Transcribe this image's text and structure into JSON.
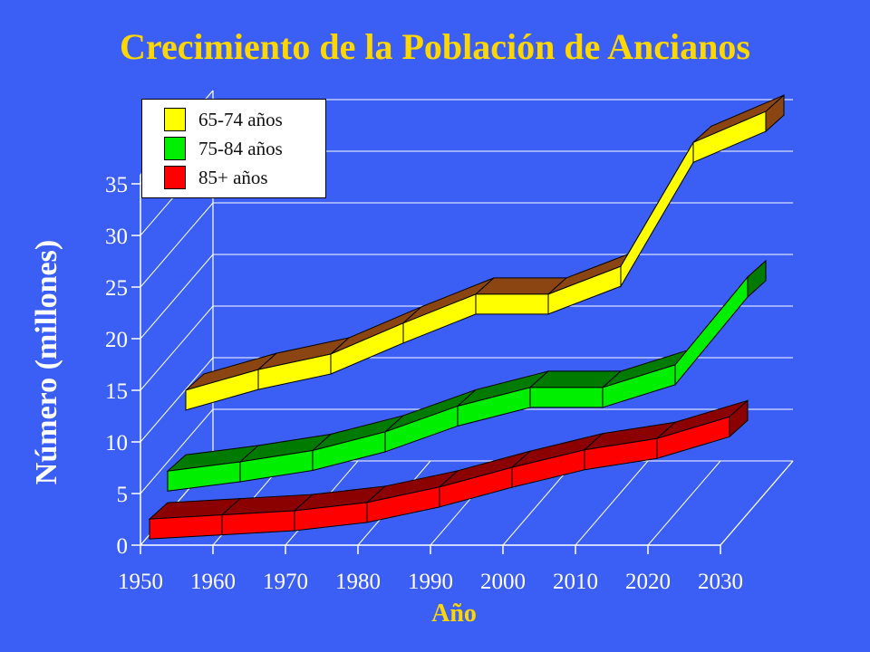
{
  "title": "Crecimiento de la Población de Ancianos",
  "chart_data": {
    "type": "line",
    "title": "Crecimiento de la Población de Ancianos",
    "xlabel": "Año",
    "ylabel": "Número (millones)",
    "x": [
      1950,
      1960,
      1970,
      1980,
      1990,
      2000,
      2010,
      2020,
      2030
    ],
    "x_ticks": [
      "1950",
      "1960",
      "1970",
      "1980",
      "1990",
      "2000",
      "2010",
      "2020",
      "2030"
    ],
    "y_ticks": [
      "0",
      "5",
      "10",
      "15",
      "20",
      "25",
      "30",
      "35"
    ],
    "ylim": [
      0,
      35
    ],
    "grid": true,
    "legend": "top-left",
    "series": [
      {
        "name": "65-74 años",
        "color": "#ffff00",
        "top_color": "#8b4513",
        "values": [
          9,
          11,
          12.5,
          15.5,
          18.3,
          18.3,
          21,
          33,
          36
        ]
      },
      {
        "name": "75-84 años",
        "color": "#00ee00",
        "top_color": "#007a00",
        "values": [
          3.2,
          4.1,
          5.2,
          7,
          9.5,
          11.3,
          11.3,
          13.5,
          22
        ]
      },
      {
        "name": "85+ años",
        "color": "#ff0000",
        "top_color": "#8b0000",
        "values": [
          0.6,
          1,
          1.4,
          2.2,
          3.7,
          5.6,
          7.3,
          8.4,
          10.5
        ]
      }
    ]
  }
}
